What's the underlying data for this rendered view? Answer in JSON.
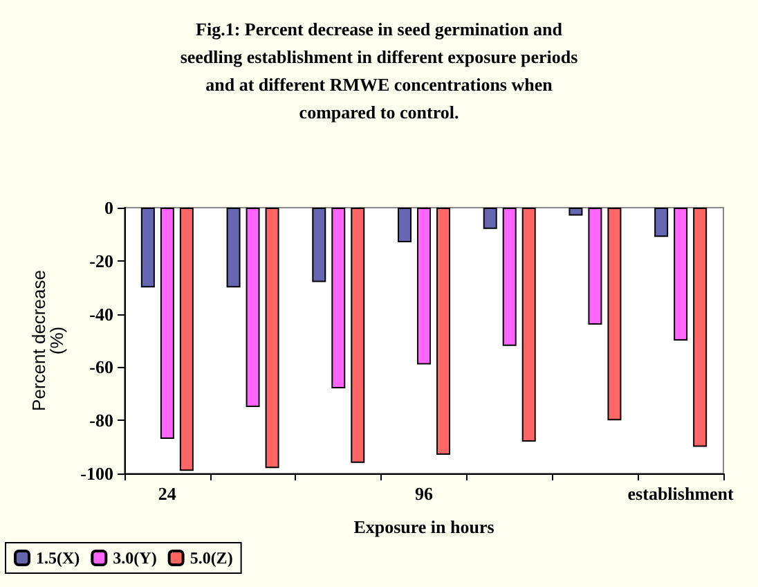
{
  "chart_data": {
    "type": "bar",
    "title": "Fig.1: Percent decrease in seed germination and\nseedling establishment in different exposure periods\nand at different RMWE concentrations when\ncompared to control.",
    "xlabel": "Exposure in hours",
    "ylabel": "Percent decrease\n(%)",
    "categories": [
      "24",
      null,
      null,
      "96",
      null,
      null,
      "establishment"
    ],
    "series": [
      {
        "name": "1.5(X)",
        "color": "#000080",
        "values": [
          -30,
          -30,
          -28,
          -13,
          -8,
          -3,
          -11
        ]
      },
      {
        "name": "3.0(Y)",
        "color": "#ff00ff",
        "values": [
          -87,
          -75,
          -68,
          -59,
          -52,
          -44,
          -50
        ]
      },
      {
        "name": "5.0(Z)",
        "color": "#ff0000",
        "values": [
          -99,
          -98,
          -96,
          -93,
          -88,
          -80,
          -90
        ]
      }
    ],
    "ylim": [
      -100,
      0
    ],
    "yticks": [
      -100,
      -80,
      -60,
      -40,
      -20,
      0
    ],
    "grid": false,
    "legend": "bottom left"
  }
}
